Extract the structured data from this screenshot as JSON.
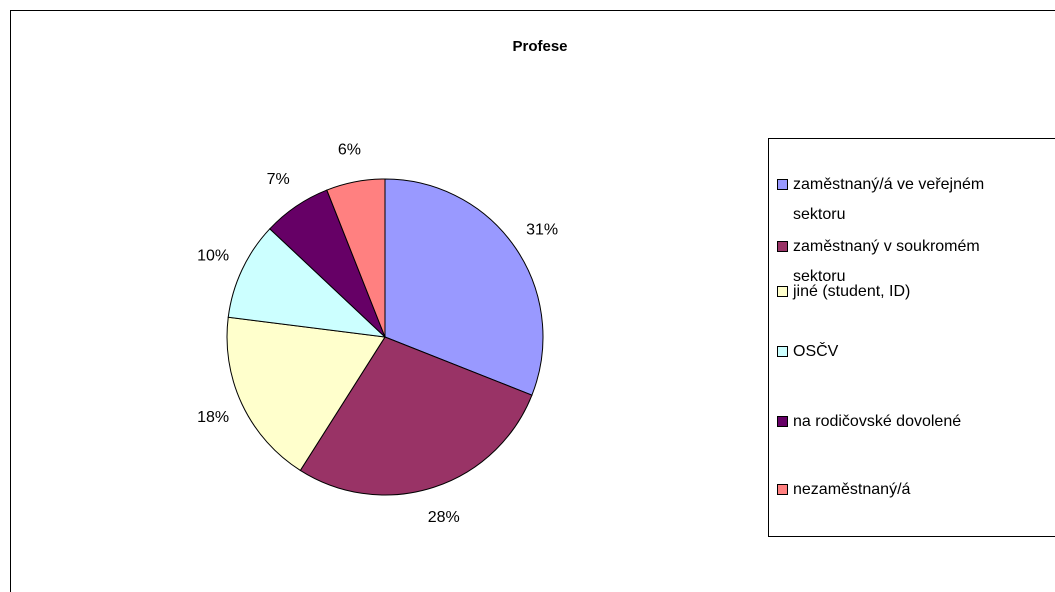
{
  "chart_data": {
    "type": "pie",
    "title": "Profese",
    "categories": [
      "zaměstnaný/á ve veřejném sektoru",
      "zaměstnaný v soukromém sektoru",
      "jiné (student, ID)",
      "OSČV",
      "na rodičovské dovolené",
      "nezaměstnaný/á"
    ],
    "values": [
      31,
      28,
      18,
      10,
      7,
      6
    ],
    "value_labels": [
      "31%",
      "28%",
      "18%",
      "10%",
      "7%",
      "6%"
    ],
    "colors": [
      "#9999ff",
      "#993366",
      "#ffffcc",
      "#ccffff",
      "#660066",
      "#ff8080"
    ],
    "legend": "right"
  }
}
